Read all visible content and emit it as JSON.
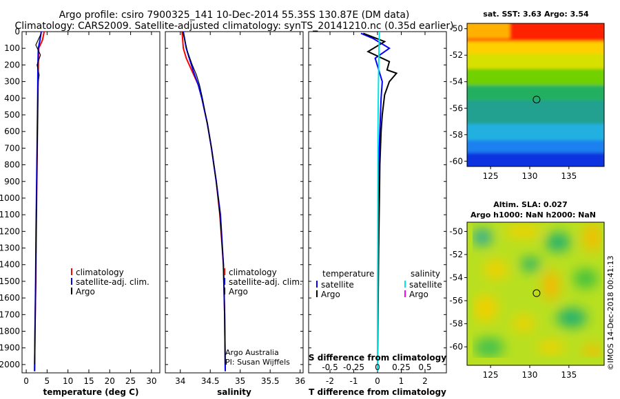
{
  "title": {
    "line1": "Argo profile: csiro 7900325_141 10-Dec-2014 55.35S 130.87E (DM data)",
    "line2": "Climatology: CARS2009. Satellite-adjusted climatology: synTS_20141210.nc (0.35d earlier)"
  },
  "credit": {
    "line1": "Argo Australia",
    "line2": "PI: Susan Wijffels",
    "imos": "©IMOS 14-Dec-2018 00:41:13"
  },
  "colors": {
    "climatology": "#ff0000",
    "satellite": "#0000ff",
    "argo": "#000000",
    "salinity_satellite": "#00e5e5",
    "salinity_argo": "#ff00ff"
  },
  "chart_data": [
    {
      "type": "line",
      "name": "temperature-profile",
      "xlabel": "temperature (deg C)",
      "xlim": [
        -1,
        32
      ],
      "ylim": [
        2050,
        0
      ],
      "xticks": [
        0,
        5,
        10,
        15,
        20,
        25,
        30
      ],
      "yticks": [
        0,
        100,
        200,
        300,
        400,
        500,
        600,
        700,
        800,
        900,
        1000,
        1100,
        1200,
        1300,
        1400,
        1500,
        1600,
        1700,
        1800,
        1900,
        2000
      ],
      "legend": [
        "climatology",
        "satellite-adj. clim.",
        "Argo"
      ],
      "series": [
        {
          "name": "climatology",
          "x": [
            4.3,
            3.9,
            3.0,
            2.9,
            2.8,
            2.7,
            2.6,
            2.5,
            2.4,
            2.3,
            2.1,
            2.0
          ],
          "y": [
            0,
            50,
            100,
            200,
            400,
            600,
            800,
            1000,
            1200,
            1500,
            1800,
            2040
          ]
        },
        {
          "name": "satellite-adj. clim.",
          "x": [
            3.6,
            3.3,
            2.9,
            2.8,
            2.75,
            2.65,
            2.55,
            2.45,
            2.35,
            2.25,
            2.1,
            2.0
          ],
          "y": [
            0,
            50,
            100,
            200,
            400,
            600,
            800,
            1000,
            1200,
            1500,
            1800,
            2040
          ]
        },
        {
          "name": "Argo",
          "x": [
            3.6,
            2.3,
            3.4,
            2.6,
            3.1,
            2.9,
            2.8,
            2.7,
            2.6,
            2.5,
            2.4,
            2.3,
            2.2,
            2.1,
            2.0
          ],
          "y": [
            10,
            80,
            140,
            200,
            260,
            300,
            400,
            600,
            800,
            1000,
            1200,
            1400,
            1600,
            1800,
            2000
          ]
        }
      ]
    },
    {
      "type": "line",
      "name": "salinity-profile",
      "xlabel": "salinity",
      "xlim": [
        33.75,
        36.05
      ],
      "ylim": [
        2050,
        0
      ],
      "xticks": [
        34,
        34.5,
        35,
        35.5,
        36
      ],
      "legend": [
        "climatology",
        "satellite-adj. clim.",
        "Argo"
      ],
      "series": [
        {
          "name": "climatology",
          "x": [
            34.03,
            34.05,
            34.1,
            34.2,
            34.3,
            34.36,
            34.45,
            34.52,
            34.6,
            34.66,
            34.72,
            34.74,
            34.75
          ],
          "y": [
            0,
            100,
            160,
            240,
            320,
            400,
            550,
            700,
            900,
            1100,
            1400,
            1700,
            2040
          ]
        },
        {
          "name": "satellite-adj. clim.",
          "x": [
            34.05,
            34.1,
            34.15,
            34.22,
            34.3,
            34.36,
            34.45,
            34.52,
            34.6,
            34.67,
            34.72,
            34.74,
            34.75
          ],
          "y": [
            0,
            100,
            160,
            240,
            320,
            400,
            550,
            700,
            900,
            1100,
            1400,
            1700,
            2040
          ]
        },
        {
          "name": "Argo",
          "x": [
            34.04,
            34.12,
            34.2,
            34.27,
            34.32,
            34.37,
            34.45,
            34.52,
            34.6,
            34.66,
            34.72,
            34.74,
            34.75
          ],
          "y": [
            0,
            120,
            200,
            260,
            320,
            400,
            550,
            700,
            900,
            1100,
            1400,
            1700,
            2000
          ]
        }
      ]
    },
    {
      "type": "line",
      "name": "difference-profile",
      "xlabel": "T difference from climatology",
      "xlabel_top": "S difference from climatology",
      "xlim": [
        -2.9,
        2.9
      ],
      "ylim": [
        2050,
        0
      ],
      "xticks": [
        -2,
        -1,
        0,
        1,
        2
      ],
      "xticks_s": [
        "-0.5",
        "-0.25",
        "0",
        "0.25",
        "0.5"
      ],
      "xticks_s_pos": [
        -2,
        -1,
        0,
        1,
        2
      ],
      "legend_t_title": "temperature",
      "legend_s_title": "salinity",
      "legend": [
        "satellite",
        "Argo",
        "satellite",
        "Argo"
      ],
      "series": [
        {
          "name": "temperature satellite",
          "x": [
            -0.7,
            -0.2,
            0.5,
            -0.1,
            0.2,
            0.15,
            0.1,
            0.05,
            0.02,
            0.01,
            0.0
          ],
          "y": [
            10,
            40,
            100,
            160,
            300,
            400,
            600,
            800,
            1100,
            1500,
            2040
          ]
        },
        {
          "name": "temperature Argo",
          "x": [
            -0.6,
            0.3,
            -0.4,
            0.5,
            0.4,
            0.8,
            0.5,
            0.3,
            0.2,
            0.15,
            0.1,
            0.08,
            0.05,
            0.03,
            0.0
          ],
          "y": [
            10,
            60,
            120,
            180,
            230,
            250,
            300,
            380,
            500,
            600,
            800,
            1000,
            1300,
            1600,
            2000
          ]
        },
        {
          "name": "salinity satellite",
          "x": [
            0.08,
            0.06,
            0.04,
            0.02,
            0.0
          ],
          "y": [
            0,
            100,
            300,
            600,
            2040
          ]
        }
      ]
    },
    {
      "type": "heatmap",
      "name": "sst-map",
      "title": "sat. SST: 3.63 Argo: 3.54",
      "xlim": [
        122,
        139.5
      ],
      "ylim": [
        -60.4,
        -49.6
      ],
      "xticks": [
        125,
        130,
        135
      ],
      "yticks": [
        -50,
        -52,
        -54,
        -56,
        -58,
        -60
      ],
      "marker": {
        "lon": 130.87,
        "lat": -55.35
      }
    },
    {
      "type": "heatmap",
      "name": "sla-map",
      "title_line1": "Altim. SLA: 0.027",
      "title_line2": "Argo h1000: NaN h2000: NaN",
      "xlim": [
        122,
        139.5
      ],
      "ylim": [
        -61.6,
        -49.2
      ],
      "xticks": [
        125,
        130,
        135
      ],
      "yticks": [
        -50,
        -52,
        -54,
        -56,
        -58,
        -60
      ],
      "marker": {
        "lon": 130.87,
        "lat": -55.35
      }
    }
  ]
}
